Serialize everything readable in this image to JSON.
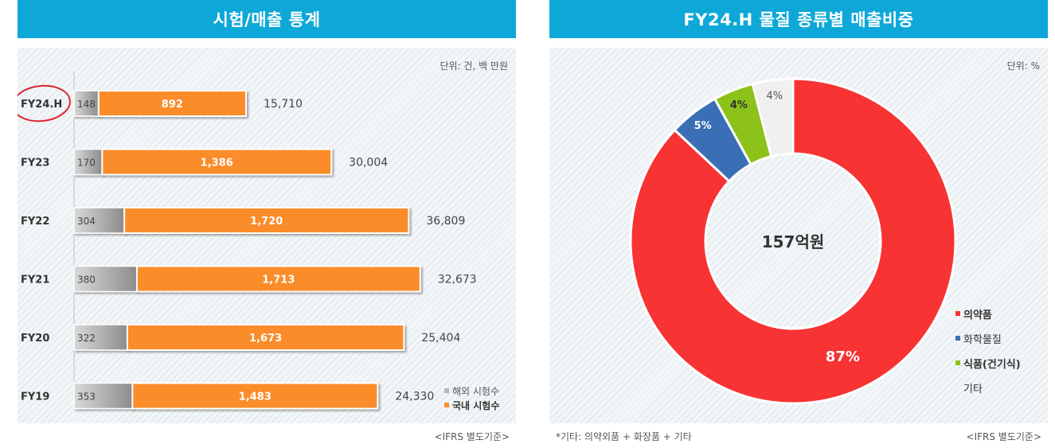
{
  "left_panel": {
    "title": "시험/매출 통계",
    "unit": "단위: 건, 백 만원",
    "footnote": "<IFRS 별도기준>"
  },
  "right_panel": {
    "title": "FY24.H 물질 종류별 매출비중",
    "unit": "단위: %",
    "center_label": "157억원",
    "footnote_left": "*기타: 의약외품 + 화장품 + 기타",
    "footnote_right": "<IFRS 별도기준>"
  },
  "colors": {
    "orange": "#fb8c2b",
    "gray": "#b8b8b8",
    "header": "#0da8d8",
    "pharma": "#f73333",
    "chemical": "#3a6fb5",
    "food": "#8cc21a",
    "other": "#f0f0f0"
  },
  "chart_data": [
    {
      "type": "bar",
      "orientation": "horizontal",
      "stacked": true,
      "categories": [
        "FY24.H",
        "FY23",
        "FY22",
        "FY21",
        "FY20",
        "FY19"
      ],
      "series": [
        {
          "name": "해외 시험수",
          "values": [
            148,
            170,
            304,
            380,
            322,
            353
          ]
        },
        {
          "name": "국내 시험수",
          "values": [
            892,
            1386,
            1720,
            1713,
            1673,
            1483
          ]
        }
      ],
      "value_labels": {
        "overseas": [
          "148",
          "170",
          "304",
          "380",
          "322",
          "353"
        ],
        "domestic": [
          "892",
          "1,386",
          "1,720",
          "1,713",
          "1,673",
          "1,483"
        ]
      },
      "sales": [
        15710,
        30004,
        36809,
        32673,
        25404,
        24330
      ],
      "sales_labels": [
        "15,710",
        "30,004",
        "36,809",
        "32,673",
        "25,404",
        "24,330"
      ],
      "legend_position": "bottom-right",
      "highlighted": "FY24.H"
    },
    {
      "type": "pie",
      "donut": true,
      "categories": [
        "의약품",
        "화학물질",
        "식품(건기식)",
        "기타"
      ],
      "values": [
        87,
        5,
        4,
        4
      ],
      "value_labels": [
        "87%",
        "5%",
        "4%",
        "4%"
      ],
      "legend_position": "right"
    }
  ]
}
